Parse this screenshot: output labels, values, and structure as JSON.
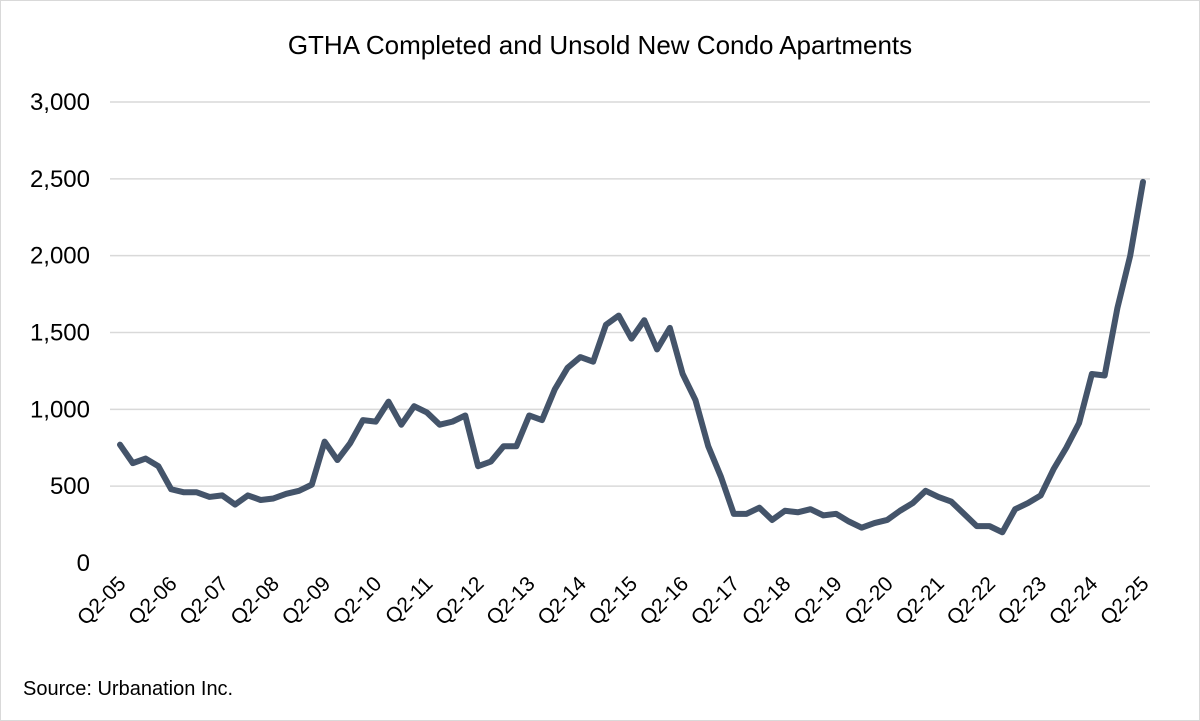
{
  "chart_data": {
    "type": "line",
    "title": "GTHA Completed and Unsold New Condo Apartments",
    "xlabel": "",
    "ylabel": "",
    "ylim": [
      0,
      3000
    ],
    "yticks": [
      "0",
      "500",
      "1,000",
      "1,500",
      "2,000",
      "2,500",
      "3,000"
    ],
    "ytick_values": [
      0,
      500,
      1000,
      1500,
      2000,
      2500,
      3000
    ],
    "grid": true,
    "legend": "none",
    "line_color": "#44546a",
    "x_tick_labels": [
      "Q2-05",
      "Q2-06",
      "Q2-07",
      "Q2-08",
      "Q2-09",
      "Q2-10",
      "Q2-11",
      "Q2-12",
      "Q2-13",
      "Q2-14",
      "Q2-15",
      "Q2-16",
      "Q2-17",
      "Q2-18",
      "Q2-19",
      "Q2-20",
      "Q2-21",
      "Q2-22",
      "Q2-23",
      "Q2-24",
      "Q2-25"
    ],
    "x": [
      "Q2-05",
      "Q3-05",
      "Q4-05",
      "Q1-06",
      "Q2-06",
      "Q3-06",
      "Q4-06",
      "Q1-07",
      "Q2-07",
      "Q3-07",
      "Q4-07",
      "Q1-08",
      "Q2-08",
      "Q3-08",
      "Q4-08",
      "Q1-09",
      "Q2-09",
      "Q3-09",
      "Q4-09",
      "Q1-10",
      "Q2-10",
      "Q3-10",
      "Q4-10",
      "Q1-11",
      "Q2-11",
      "Q3-11",
      "Q4-11",
      "Q1-12",
      "Q2-12",
      "Q3-12",
      "Q4-12",
      "Q1-13",
      "Q2-13",
      "Q3-13",
      "Q4-13",
      "Q1-14",
      "Q2-14",
      "Q3-14",
      "Q4-14",
      "Q1-15",
      "Q2-15",
      "Q3-15",
      "Q4-15",
      "Q1-16",
      "Q2-16",
      "Q3-16",
      "Q4-16",
      "Q1-17",
      "Q2-17",
      "Q3-17",
      "Q4-17",
      "Q1-18",
      "Q2-18",
      "Q3-18",
      "Q4-18",
      "Q1-19",
      "Q2-19",
      "Q3-19",
      "Q4-19",
      "Q1-20",
      "Q2-20",
      "Q3-20",
      "Q4-20",
      "Q1-21",
      "Q2-21",
      "Q3-21",
      "Q4-21",
      "Q1-22",
      "Q2-22",
      "Q3-22",
      "Q4-22",
      "Q1-23",
      "Q2-23",
      "Q3-23",
      "Q4-23",
      "Q1-24",
      "Q2-24",
      "Q3-24",
      "Q4-24",
      "Q1-25",
      "Q2-25"
    ],
    "series": [
      {
        "values": [
          770,
          650,
          680,
          630,
          480,
          460,
          460,
          430,
          440,
          380,
          440,
          410,
          420,
          450,
          470,
          510,
          790,
          670,
          780,
          930,
          920,
          1050,
          900,
          1020,
          980,
          900,
          920,
          960,
          630,
          660,
          760,
          760,
          960,
          930,
          1130,
          1270,
          1340,
          1310,
          1550,
          1610,
          1460,
          1580,
          1390,
          1530,
          1230,
          1060,
          760,
          560,
          320,
          320,
          360,
          280,
          340,
          330,
          350,
          310,
          320,
          270,
          230,
          260,
          280,
          340,
          390,
          470,
          430,
          400,
          320,
          240,
          240,
          200,
          350,
          390,
          440,
          610,
          750,
          910,
          1230,
          1220,
          1660,
          2000,
          2480
        ]
      }
    ],
    "source": "Source: Urbanation Inc."
  }
}
